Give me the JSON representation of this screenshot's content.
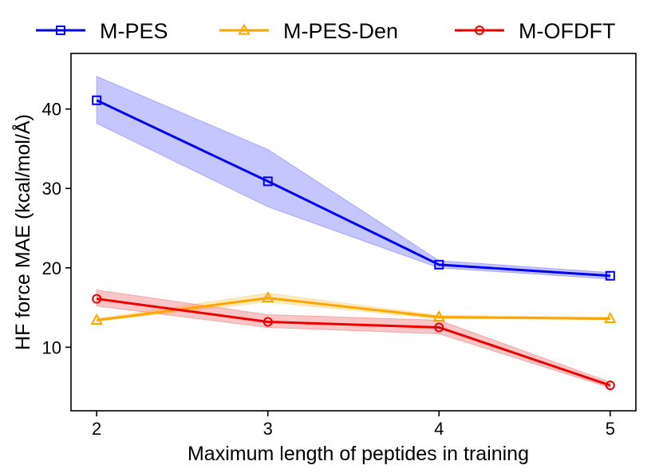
{
  "chart_data": {
    "type": "line",
    "title": "",
    "xlabel": "Maximum length of peptides in training",
    "ylabel": "HF force MAE (kcal/mol/Å)",
    "x": [
      2,
      3,
      4,
      5
    ],
    "xlim": [
      1.85,
      5.15
    ],
    "ylim": [
      2,
      47
    ],
    "xticks": [
      2,
      3,
      4,
      5
    ],
    "yticks": [
      10,
      20,
      30,
      40
    ],
    "legend_position": "top",
    "series": [
      {
        "name": "M-PES",
        "color": "#0000ee",
        "band_color": "#8080ff",
        "marker": "square",
        "values": [
          41.1,
          30.9,
          20.4,
          19.0
        ],
        "lower": [
          38.2,
          27.7,
          20.0,
          18.6
        ],
        "upper": [
          44.1,
          34.9,
          20.9,
          19.4
        ]
      },
      {
        "name": "M-PES-Den",
        "color": "#ffa500",
        "band_color": "#ffd27a",
        "marker": "triangle",
        "values": [
          13.4,
          16.2,
          13.8,
          13.6
        ],
        "lower": [
          13.3,
          15.7,
          13.6,
          13.5
        ],
        "upper": [
          13.6,
          16.8,
          14.0,
          13.8
        ]
      },
      {
        "name": "M-OFDFT",
        "color": "#ee0000",
        "band_color": "#f08080",
        "marker": "circle",
        "values": [
          16.1,
          13.2,
          12.5,
          5.2
        ],
        "lower": [
          15.2,
          12.5,
          11.7,
          4.9
        ],
        "upper": [
          17.2,
          14.1,
          13.4,
          5.6
        ]
      }
    ]
  }
}
